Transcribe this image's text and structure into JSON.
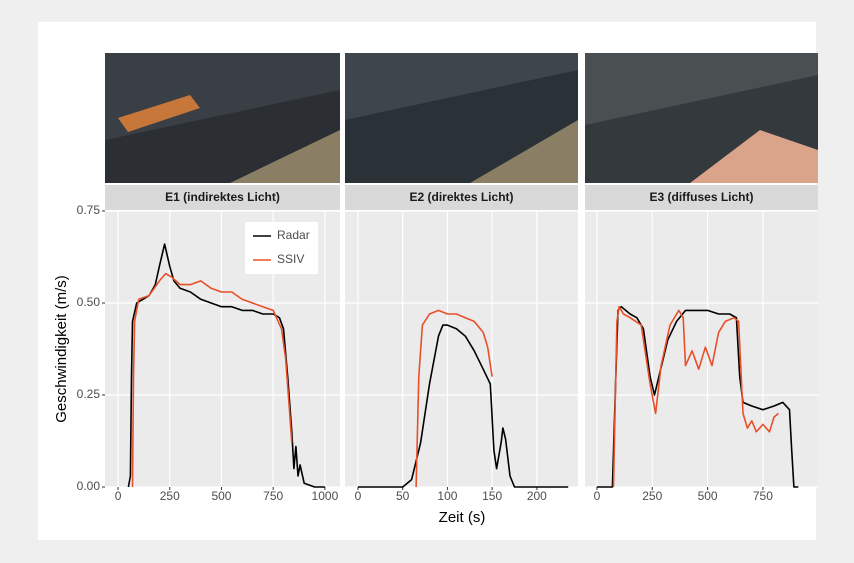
{
  "chart_data": {
    "type": "line",
    "xlabel": "Zeit (s)",
    "ylabel": "Geschwindigkeit (m/s)",
    "ylim": [
      0,
      0.75
    ],
    "yticks": [
      {
        "value": 0,
        "label": "0.00"
      },
      {
        "value": 0.25,
        "label": "0.25"
      },
      {
        "value": 0.5,
        "label": "0.50"
      },
      {
        "value": 0.75,
        "label": "0.75"
      }
    ],
    "grid": true,
    "legend": "top-right",
    "series": [
      {
        "name": "Radar",
        "color": "#000000"
      },
      {
        "name": "SSIV",
        "color": "#e8502a"
      }
    ],
    "facets": [
      {
        "title": "E1 (indirektes Licht)",
        "xlim": [
          -63,
          1073
        ],
        "xticks": [
          0,
          250,
          500,
          750,
          1000
        ],
        "series": [
          {
            "x": [
              50,
              60,
              65,
              70,
              90,
              120,
              150,
              180,
              200,
              225,
              250,
              270,
              300,
              350,
              400,
              450,
              500,
              550,
              600,
              650,
              700,
              750,
              780,
              800,
              820,
              840,
              850,
              860,
              870,
              880,
              900,
              950,
              1000
            ],
            "values": [
              0,
              0.03,
              0.3,
              0.45,
              0.5,
              0.51,
              0.52,
              0.55,
              0.6,
              0.66,
              0.6,
              0.56,
              0.54,
              0.53,
              0.51,
              0.5,
              0.49,
              0.49,
              0.48,
              0.48,
              0.47,
              0.47,
              0.46,
              0.43,
              0.3,
              0.15,
              0.05,
              0.11,
              0.03,
              0.06,
              0.01,
              0,
              0
            ]
          },
          {
            "x": [
              70,
              75,
              80,
              100,
              150,
              200,
              230,
              260,
              300,
              350,
              400,
              450,
              500,
              550,
              600,
              650,
              700,
              750,
              790,
              810,
              830,
              840
            ],
            "values": [
              0,
              0.3,
              0.45,
              0.51,
              0.52,
              0.56,
              0.58,
              0.57,
              0.55,
              0.55,
              0.56,
              0.54,
              0.53,
              0.53,
              0.51,
              0.5,
              0.49,
              0.48,
              0.43,
              0.35,
              0.2,
              0.12
            ]
          }
        ]
      },
      {
        "title": "E2 (direktes Licht)",
        "xlim": [
          -14.5,
          246
        ],
        "xticks": [
          0,
          50,
          100,
          150,
          200
        ],
        "series": [
          {
            "x": [
              0,
              50,
              60,
              70,
              80,
              90,
              95,
              100,
              110,
              120,
              130,
              140,
              148,
              152,
              155,
              160,
              162,
              165,
              170,
              175,
              235
            ],
            "values": [
              0,
              0,
              0.02,
              0.12,
              0.28,
              0.41,
              0.44,
              0.44,
              0.43,
              0.41,
              0.37,
              0.32,
              0.28,
              0.1,
              0.05,
              0.12,
              0.16,
              0.13,
              0.03,
              0,
              0
            ]
          },
          {
            "x": [
              65,
              68,
              72,
              80,
              90,
              100,
              110,
              120,
              130,
              140,
              145,
              150
            ],
            "values": [
              0,
              0.3,
              0.44,
              0.47,
              0.48,
              0.47,
              0.47,
              0.46,
              0.45,
              0.42,
              0.38,
              0.3
            ]
          }
        ]
      },
      {
        "title": "E3 (diffuses Licht)",
        "xlim": [
          -54,
          999
        ],
        "xticks": [
          0,
          250,
          500,
          750
        ],
        "series": [
          {
            "x": [
              0,
              70,
              85,
              95,
              110,
              150,
              180,
              210,
              240,
              260,
              280,
              320,
              360,
              400,
              450,
              500,
              550,
              600,
              630,
              645,
              660,
              700,
              750,
              800,
              840,
              870,
              880,
              890,
              910
            ],
            "values": [
              0,
              0,
              0.3,
              0.48,
              0.49,
              0.47,
              0.46,
              0.43,
              0.3,
              0.25,
              0.3,
              0.4,
              0.45,
              0.48,
              0.48,
              0.48,
              0.47,
              0.47,
              0.46,
              0.3,
              0.23,
              0.22,
              0.21,
              0.22,
              0.23,
              0.21,
              0.1,
              0,
              0
            ]
          },
          {
            "x": [
              75,
              90,
              100,
              120,
              150,
              200,
              240,
              265,
              290,
              330,
              370,
              390,
              400,
              430,
              460,
              490,
              520,
              550,
              580,
              620,
              640,
              660,
              680,
              700,
              720,
              750,
              780,
              800,
              820
            ],
            "values": [
              0,
              0.45,
              0.49,
              0.47,
              0.46,
              0.44,
              0.28,
              0.2,
              0.33,
              0.44,
              0.48,
              0.46,
              0.33,
              0.37,
              0.32,
              0.38,
              0.33,
              0.42,
              0.45,
              0.46,
              0.45,
              0.2,
              0.16,
              0.18,
              0.15,
              0.17,
              0.15,
              0.19,
              0.2
            ]
          }
        ]
      }
    ]
  }
}
